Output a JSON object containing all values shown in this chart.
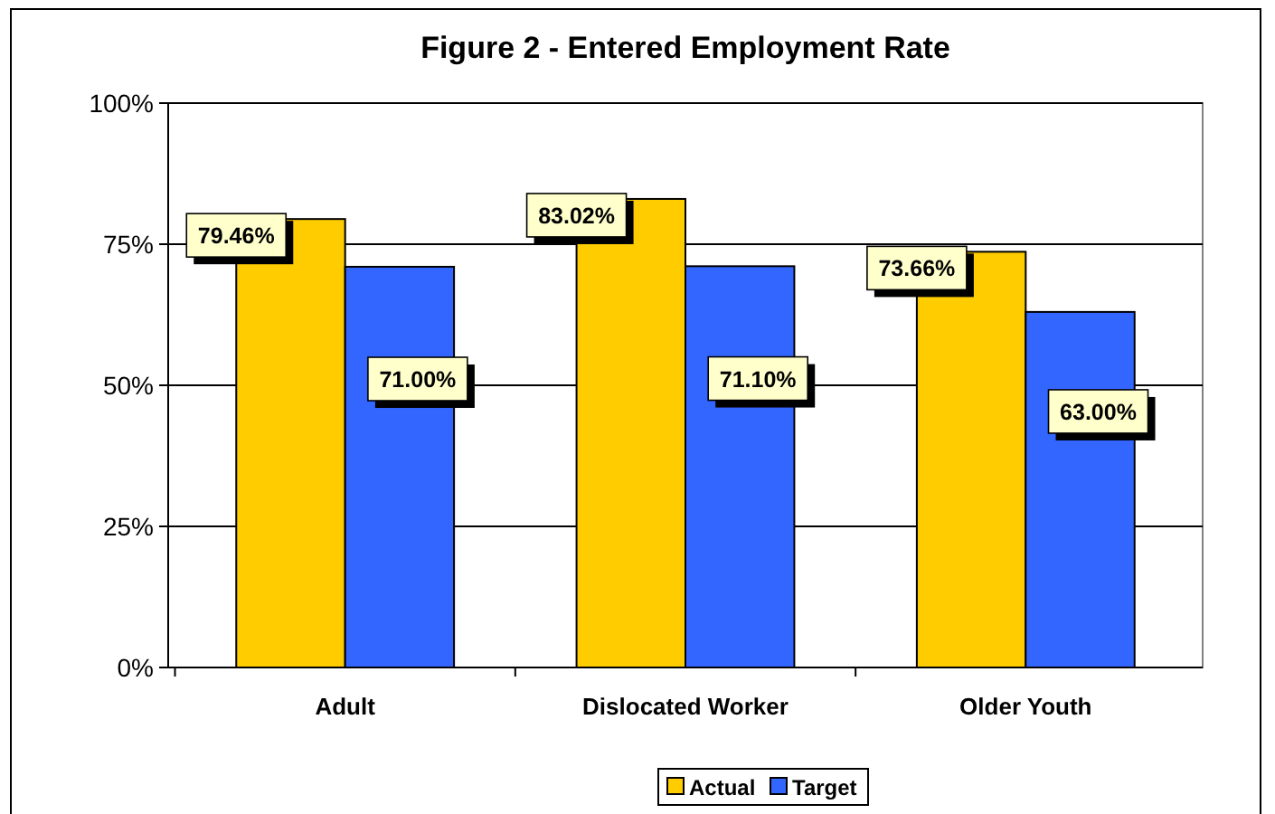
{
  "chart_data": {
    "type": "bar",
    "title": "Figure 2 - Entered Employment Rate",
    "categories": [
      "Adult",
      "Dislocated Worker",
      "Older Youth"
    ],
    "series": [
      {
        "name": "Actual",
        "color": "#ffcc00",
        "values": [
          79.46,
          83.02,
          73.66
        ],
        "value_labels": [
          "79.46%",
          "83.02%",
          "73.66%"
        ]
      },
      {
        "name": "Target",
        "color": "#3366ff",
        "values": [
          71.0,
          71.1,
          63.0
        ],
        "value_labels": [
          "71.00%",
          "71.10%",
          "63.00%"
        ]
      }
    ],
    "ylim": [
      0,
      100
    ],
    "yticks": [
      {
        "value": 0,
        "label": "0%"
      },
      {
        "value": 25,
        "label": "25%"
      },
      {
        "value": 50,
        "label": "50%"
      },
      {
        "value": 75,
        "label": "75%"
      },
      {
        "value": 100,
        "label": "100%"
      }
    ],
    "grid": "y",
    "legend": "bottom"
  }
}
